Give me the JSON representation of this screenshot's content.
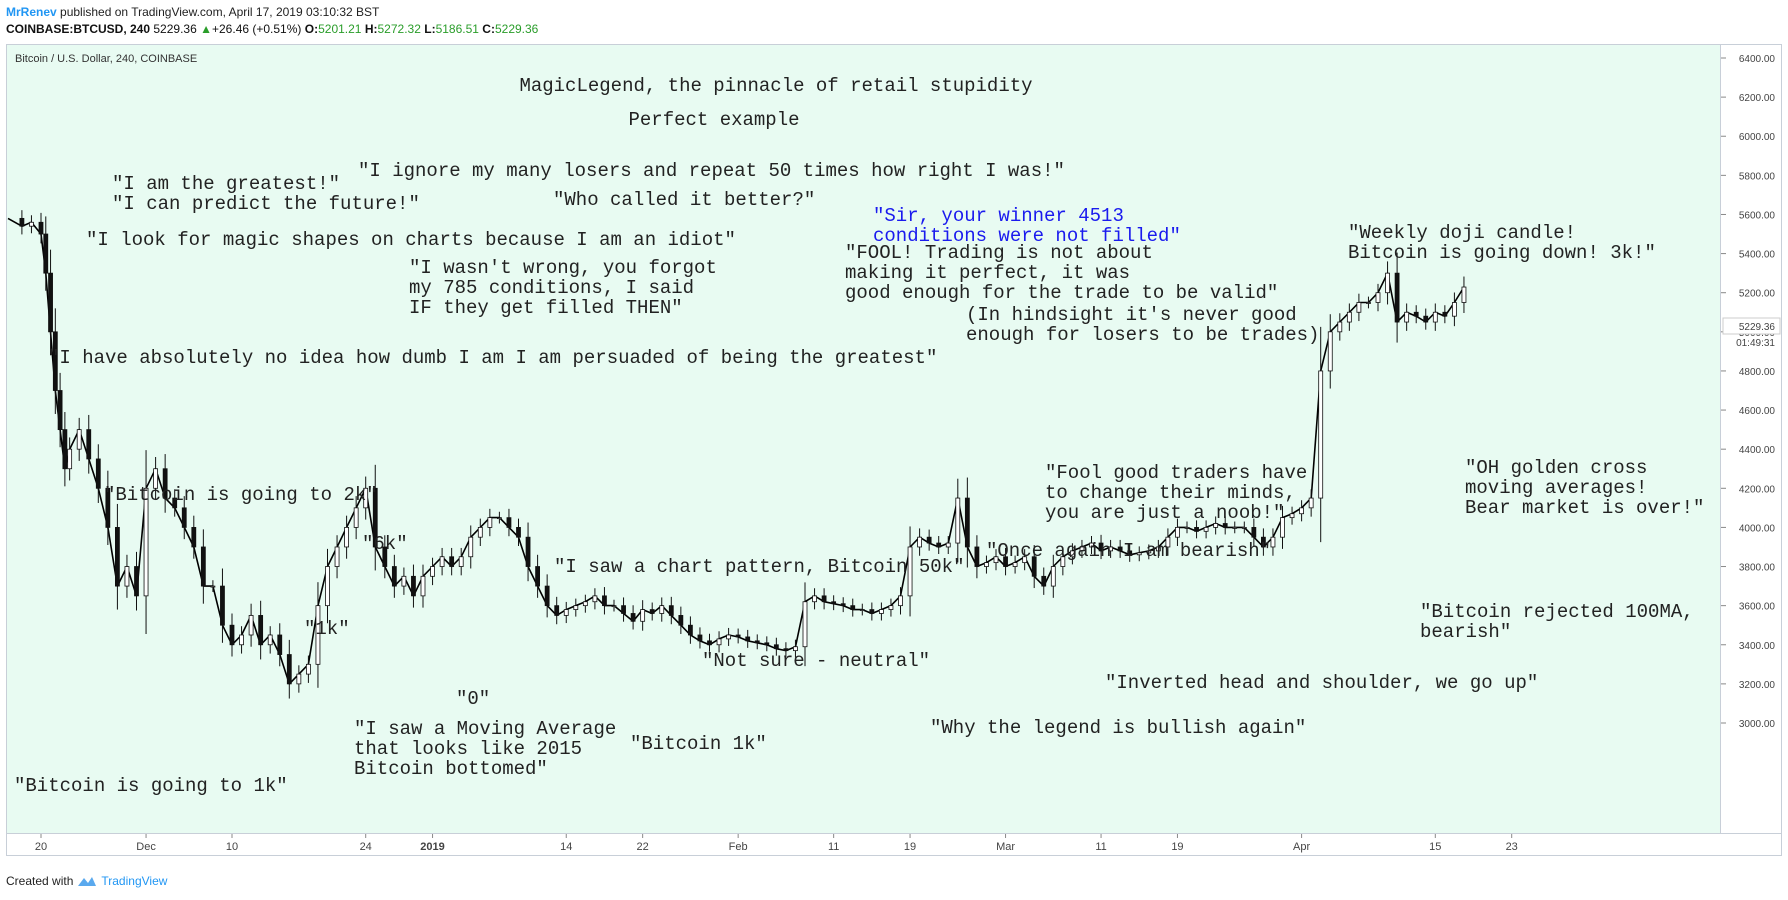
{
  "header": {
    "author": "MrRenev",
    "published": "published on TradingView.com, April 17, 2019 03:10:32 BST",
    "symbol": "COINBASE:BTCUSD, 240",
    "last": "5229.36",
    "change_arrow": "▲",
    "change": "+26.46 (+0.51%)",
    "o_label": "O:",
    "o": "5201.21",
    "h_label": "H:",
    "h": "5272.32",
    "l_label": "L:",
    "l": "5186.51",
    "c_label": "C:",
    "c": "5229.36"
  },
  "pane_title": "Bitcoin / U.S. Dollar, 240, COINBASE",
  "footer": {
    "created_with": "Created with",
    "brand": "TradingView"
  },
  "price_label": {
    "price": "5229.36",
    "countdown": "01:49:31"
  },
  "colors": {
    "panel_bg": "#e8fbf2",
    "candle": "#000000",
    "accent": "#2196f3",
    "up": "#2a9d2a",
    "blue_note": "#1a1aee"
  },
  "chart_data": {
    "type": "candlestick-line",
    "title": "MagicLegend, the pinnacle of retail stupidity",
    "subtitle": "Perfect example",
    "y_ticks": [
      "6400.00",
      "6200.00",
      "6000.00",
      "5800.00",
      "5600.00",
      "5400.00",
      "5200.00",
      "5000.00",
      "4800.00",
      "4600.00",
      "4400.00",
      "4200.00",
      "4000.00",
      "3800.00",
      "3600.00",
      "3400.00",
      "3200.00",
      "3000.00"
    ],
    "ylim": [
      2900,
      6500
    ],
    "x_ticks": [
      {
        "label": "20",
        "day": 0
      },
      {
        "label": "Dec",
        "day": 11
      },
      {
        "label": "10",
        "day": 20
      },
      {
        "label": "24",
        "day": 34
      },
      {
        "label": "2019",
        "day": 41,
        "bold": true
      },
      {
        "label": "14",
        "day": 55
      },
      {
        "label": "22",
        "day": 63
      },
      {
        "label": "Feb",
        "day": 73
      },
      {
        "label": "11",
        "day": 83
      },
      {
        "label": "19",
        "day": 91
      },
      {
        "label": "Mar",
        "day": 101
      },
      {
        "label": "11",
        "day": 111
      },
      {
        "label": "19",
        "day": 119
      },
      {
        "label": "Apr",
        "day": 132
      },
      {
        "label": "15",
        "day": 146
      },
      {
        "label": "23",
        "day": 154
      }
    ],
    "series": [
      {
        "points": [
          [
            -4,
            5580
          ],
          [
            -2,
            5540
          ],
          [
            -1,
            5560
          ],
          [
            0,
            5500
          ],
          [
            0.5,
            5300
          ],
          [
            1,
            5000
          ],
          [
            1.5,
            4700
          ],
          [
            2,
            4500
          ],
          [
            2.5,
            4300
          ],
          [
            3,
            4400
          ],
          [
            4,
            4500
          ],
          [
            5,
            4350
          ],
          [
            6,
            4200
          ],
          [
            7,
            4000
          ],
          [
            8,
            3700
          ],
          [
            9,
            3800
          ],
          [
            10,
            3650
          ],
          [
            11,
            4200
          ],
          [
            12,
            4300
          ],
          [
            13,
            4150
          ],
          [
            14,
            4100
          ],
          [
            15,
            4000
          ],
          [
            16,
            3900
          ],
          [
            17,
            3700
          ],
          [
            18,
            3700
          ],
          [
            19,
            3500
          ],
          [
            20,
            3400
          ],
          [
            21,
            3450
          ],
          [
            22,
            3550
          ],
          [
            23,
            3400
          ],
          [
            24,
            3450
          ],
          [
            25,
            3350
          ],
          [
            26,
            3200
          ],
          [
            27,
            3250
          ],
          [
            28,
            3300
          ],
          [
            29,
            3600
          ],
          [
            30,
            3800
          ],
          [
            31,
            3900
          ],
          [
            32,
            4000
          ],
          [
            33,
            4100
          ],
          [
            34,
            4200
          ],
          [
            35,
            3900
          ],
          [
            36,
            3800
          ],
          [
            37,
            3700
          ],
          [
            38,
            3750
          ],
          [
            39,
            3650
          ],
          [
            40,
            3750
          ],
          [
            41,
            3800
          ],
          [
            42,
            3850
          ],
          [
            43,
            3800
          ],
          [
            44,
            3850
          ],
          [
            45,
            3950
          ],
          [
            46,
            4000
          ],
          [
            47,
            4050
          ],
          [
            48,
            4050
          ],
          [
            49,
            4000
          ],
          [
            50,
            3950
          ],
          [
            51,
            3800
          ],
          [
            52,
            3700
          ],
          [
            53,
            3600
          ],
          [
            54,
            3550
          ],
          [
            55,
            3580
          ],
          [
            56,
            3600
          ],
          [
            57,
            3620
          ],
          [
            58,
            3650
          ],
          [
            59,
            3600
          ],
          [
            60,
            3600
          ],
          [
            61,
            3560
          ],
          [
            62,
            3520
          ],
          [
            63,
            3580
          ],
          [
            64,
            3560
          ],
          [
            65,
            3600
          ],
          [
            66,
            3550
          ],
          [
            67,
            3500
          ],
          [
            68,
            3450
          ],
          [
            69,
            3420
          ],
          [
            70,
            3400
          ],
          [
            71,
            3430
          ],
          [
            72,
            3450
          ],
          [
            73,
            3440
          ],
          [
            74,
            3420
          ],
          [
            75,
            3410
          ],
          [
            76,
            3400
          ],
          [
            77,
            3380
          ],
          [
            78,
            3370
          ],
          [
            79,
            3390
          ],
          [
            80,
            3620
          ],
          [
            81,
            3650
          ],
          [
            82,
            3620
          ],
          [
            83,
            3610
          ],
          [
            84,
            3600
          ],
          [
            85,
            3580
          ],
          [
            86,
            3580
          ],
          [
            87,
            3560
          ],
          [
            88,
            3580
          ],
          [
            89,
            3600
          ],
          [
            90,
            3650
          ],
          [
            91,
            3900
          ],
          [
            92,
            3950
          ],
          [
            93,
            3920
          ],
          [
            94,
            3900
          ],
          [
            95,
            3920
          ],
          [
            96,
            4150
          ],
          [
            97,
            3900
          ],
          [
            98,
            3800
          ],
          [
            99,
            3820
          ],
          [
            100,
            3850
          ],
          [
            101,
            3800
          ],
          [
            102,
            3820
          ],
          [
            103,
            3850
          ],
          [
            104,
            3750
          ],
          [
            105,
            3700
          ],
          [
            106,
            3800
          ],
          [
            107,
            3850
          ],
          [
            108,
            3880
          ],
          [
            109,
            3900
          ],
          [
            110,
            3920
          ],
          [
            111,
            3880
          ],
          [
            112,
            3900
          ],
          [
            113,
            3880
          ],
          [
            114,
            3860
          ],
          [
            115,
            3870
          ],
          [
            116,
            3880
          ],
          [
            117,
            3900
          ],
          [
            118,
            3950
          ],
          [
            119,
            4000
          ],
          [
            120,
            4000
          ],
          [
            121,
            3980
          ],
          [
            122,
            4000
          ],
          [
            123,
            4020
          ],
          [
            124,
            4000
          ],
          [
            125,
            4000
          ],
          [
            126,
            4000
          ],
          [
            127,
            3950
          ],
          [
            128,
            3900
          ],
          [
            129,
            3950
          ],
          [
            130,
            4050
          ],
          [
            131,
            4070
          ],
          [
            132,
            4100
          ],
          [
            133,
            4150
          ],
          [
            134,
            4800
          ],
          [
            135,
            5000
          ],
          [
            136,
            5050
          ],
          [
            137,
            5100
          ],
          [
            138,
            5150
          ],
          [
            139,
            5150
          ],
          [
            140,
            5200
          ],
          [
            141,
            5300
          ],
          [
            142,
            5050
          ],
          [
            143,
            5100
          ],
          [
            144,
            5080
          ],
          [
            145,
            5050
          ],
          [
            146,
            5100
          ],
          [
            147,
            5080
          ],
          [
            148,
            5150
          ],
          [
            149,
            5229
          ]
        ]
      }
    ],
    "annotations": [
      {
        "lines": [
          "\"I am the greatest!\"",
          "\"I can predict the future!\""
        ]
      },
      {
        "lines": [
          "\"I ignore my many losers and repeat 50 times how right I was!\""
        ]
      },
      {
        "lines": [
          "\"Who called it better?\""
        ]
      },
      {
        "lines": [
          "\"I look for magic shapes on charts because I am an idiot\""
        ]
      },
      {
        "lines": [
          "\"I wasn't wrong, you forgot",
          "my 785 conditions, I said",
          "IF they get filled THEN\""
        ]
      },
      {
        "lines": [
          "\"Sir, your winner 4513",
          "conditions were not filled\""
        ],
        "color": "blue"
      },
      {
        "lines": [
          "\"FOOL! Trading is not about",
          "making it perfect, it was",
          "good enough for the trade to be valid\""
        ]
      },
      {
        "lines": [
          "(In hindsight it's never good",
          "enough for losers to be trades)"
        ]
      },
      {
        "lines": [
          "\"Weekly doji candle!",
          "Bitcoin is going down! 3k!\""
        ]
      },
      {
        "lines": [
          "\"I have absolutely no idea how dumb I am I am persuaded of being the greatest\""
        ]
      },
      {
        "lines": [
          "\"Bitcoin is going to 2k\""
        ]
      },
      {
        "lines": [
          "\"Fool good traders have",
          "to change their minds,",
          "you are just a noob!\""
        ]
      },
      {
        "lines": [
          "\"OH golden cross",
          "moving averages!",
          "Bear market is over!\""
        ]
      },
      {
        "lines": [
          "\"6k\""
        ]
      },
      {
        "lines": [
          "\"Once again I am bearish\""
        ]
      },
      {
        "lines": [
          "\"I saw a chart pattern, Bitcoin 50k\""
        ]
      },
      {
        "lines": [
          "\"1k\""
        ]
      },
      {
        "lines": [
          "\"Bitcoin rejected 100MA,",
          "bearish\""
        ]
      },
      {
        "lines": [
          "\"Not sure - neutral\""
        ]
      },
      {
        "lines": [
          "\"0\""
        ]
      },
      {
        "lines": [
          "\"Inverted head and shoulder, we go up\""
        ]
      },
      {
        "lines": [
          "\"I saw a Moving Average",
          "that looks like 2015",
          "Bitcoin bottomed\""
        ]
      },
      {
        "lines": [
          "\"Bitcoin 1k\""
        ]
      },
      {
        "lines": [
          "\"Why the legend is bullish again\""
        ]
      },
      {
        "lines": [
          "\"Bitcoin is going to 1k\""
        ]
      }
    ]
  }
}
